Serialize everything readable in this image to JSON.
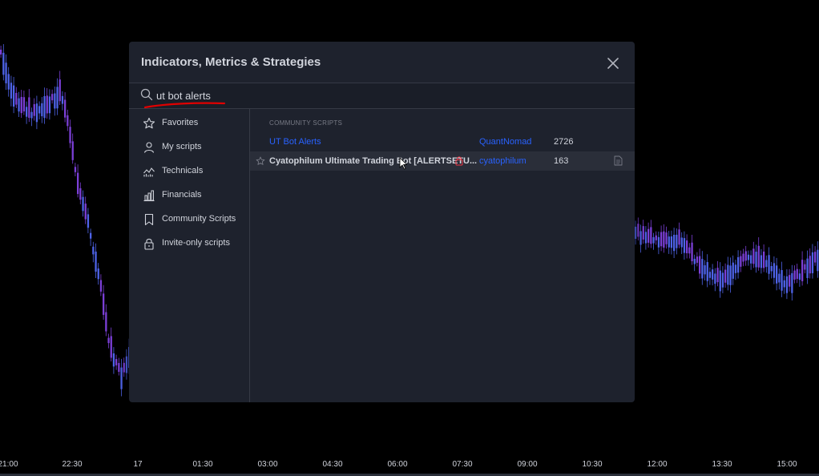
{
  "dialog": {
    "title": "Indicators, Metrics & Strategies",
    "search": {
      "value": "ut bot alerts",
      "placeholder": "Search"
    },
    "sidebar": {
      "items": [
        {
          "label": "Favorites",
          "icon": "star-icon"
        },
        {
          "label": "My scripts",
          "icon": "user-icon"
        },
        {
          "label": "Technicals",
          "icon": "technicals-icon"
        },
        {
          "label": "Financials",
          "icon": "financials-icon"
        },
        {
          "label": "Community Scripts",
          "icon": "bookmark-icon"
        },
        {
          "label": "Invite-only scripts",
          "icon": "lock-icon"
        }
      ]
    },
    "results": {
      "section_title": "COMMUNITY SCRIPTS",
      "rows": [
        {
          "name": "UT Bot Alerts",
          "author": "QuantNomad",
          "count": "2726"
        },
        {
          "name": "Cyatophilum Ultimate Trading Bot [ALERTSETU...",
          "author": "cyatophilum",
          "count": "163"
        }
      ]
    }
  },
  "chart": {
    "time_labels": [
      "21:00",
      "22:30",
      "17",
      "01:30",
      "03:00",
      "04:30",
      "06:00",
      "07:30",
      "09:00",
      "10:30",
      "12:00",
      "13:30",
      "15:00"
    ]
  },
  "colors": {
    "background": "#000000",
    "panel": "#1e222d",
    "panel_border": "#363a45",
    "text": "#d1d4dc",
    "link": "#2962ff",
    "muted": "#787b86",
    "underline_annotation": "#e00000",
    "candle_up": "#4e63e8",
    "candle_down": "#7b3fd6"
  }
}
